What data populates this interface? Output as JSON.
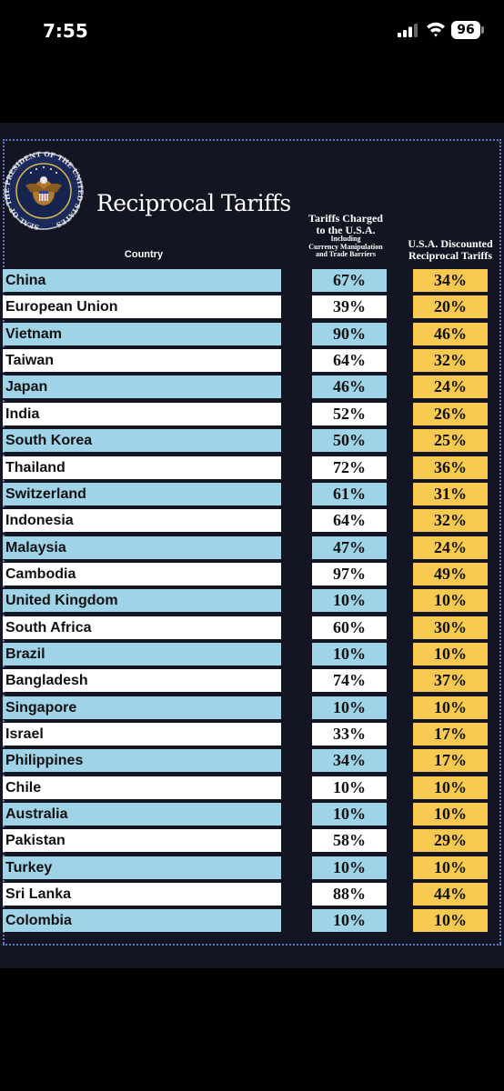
{
  "status_bar": {
    "time": "7:55",
    "battery": "96"
  },
  "chart_data": {
    "type": "table",
    "title": "Reciprocal Tariffs",
    "seal_text": "SEAL OF THE PRESIDENT OF THE UNITED STATES",
    "columns": {
      "country": "Country",
      "charged_line1": "Tariffs Charged",
      "charged_line2": "to the U.S.A.",
      "charged_line3": "Including",
      "charged_line4": "Currency Manipulation",
      "charged_line5": "and Trade Barriers",
      "discount_line1": "U.S.A. Discounted",
      "discount_line2": "Reciprocal Tariffs"
    },
    "colors": {
      "blue_row": "#9fd3e7",
      "white_row": "#ffffff",
      "discount": "#f8c950",
      "background": "#131523"
    },
    "rows": [
      {
        "country": "China",
        "charged": "67%",
        "discount": "34%"
      },
      {
        "country": "European Union",
        "charged": "39%",
        "discount": "20%"
      },
      {
        "country": "Vietnam",
        "charged": "90%",
        "discount": "46%"
      },
      {
        "country": "Taiwan",
        "charged": "64%",
        "discount": "32%"
      },
      {
        "country": "Japan",
        "charged": "46%",
        "discount": "24%"
      },
      {
        "country": "India",
        "charged": "52%",
        "discount": "26%"
      },
      {
        "country": "South Korea",
        "charged": "50%",
        "discount": "25%"
      },
      {
        "country": "Thailand",
        "charged": "72%",
        "discount": "36%"
      },
      {
        "country": "Switzerland",
        "charged": "61%",
        "discount": "31%"
      },
      {
        "country": "Indonesia",
        "charged": "64%",
        "discount": "32%"
      },
      {
        "country": "Malaysia",
        "charged": "47%",
        "discount": "24%"
      },
      {
        "country": "Cambodia",
        "charged": "97%",
        "discount": "49%"
      },
      {
        "country": "United Kingdom",
        "charged": "10%",
        "discount": "10%"
      },
      {
        "country": "South Africa",
        "charged": "60%",
        "discount": "30%"
      },
      {
        "country": "Brazil",
        "charged": "10%",
        "discount": "10%"
      },
      {
        "country": "Bangladesh",
        "charged": "74%",
        "discount": "37%"
      },
      {
        "country": "Singapore",
        "charged": "10%",
        "discount": "10%"
      },
      {
        "country": "Israel",
        "charged": "33%",
        "discount": "17%"
      },
      {
        "country": "Philippines",
        "charged": "34%",
        "discount": "17%"
      },
      {
        "country": "Chile",
        "charged": "10%",
        "discount": "10%"
      },
      {
        "country": "Australia",
        "charged": "10%",
        "discount": "10%"
      },
      {
        "country": "Pakistan",
        "charged": "58%",
        "discount": "29%"
      },
      {
        "country": "Turkey",
        "charged": "10%",
        "discount": "10%"
      },
      {
        "country": "Sri Lanka",
        "charged": "88%",
        "discount": "44%"
      },
      {
        "country": "Colombia",
        "charged": "10%",
        "discount": "10%"
      }
    ]
  }
}
